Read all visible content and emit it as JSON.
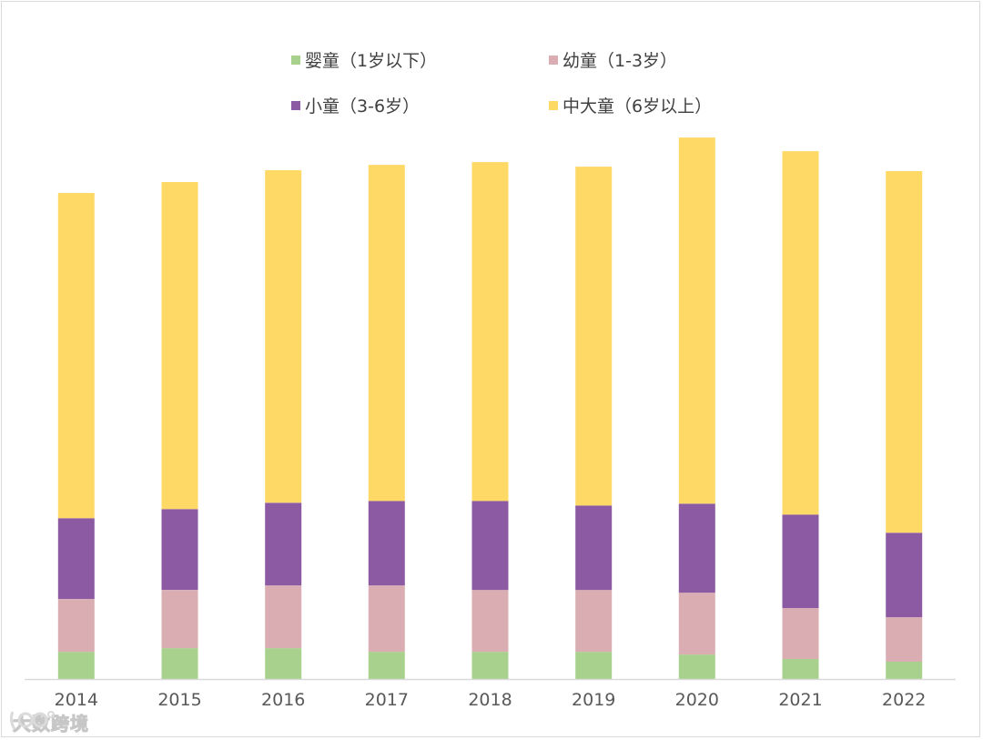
{
  "chart_data": {
    "type": "bar",
    "stacked": true,
    "categories": [
      "2014",
      "2015",
      "2016",
      "2017",
      "2018",
      "2019",
      "2020",
      "2021",
      "2022"
    ],
    "series": [
      {
        "name": "婴童（1岁以下）",
        "color": "#a9d18e",
        "values": [
          30,
          34,
          34,
          30,
          30,
          30,
          27,
          22,
          19
        ]
      },
      {
        "name": "幼童（1-3岁）",
        "color": "#d9adb1",
        "values": [
          58,
          64,
          69,
          73,
          68,
          68,
          68,
          56,
          49
        ]
      },
      {
        "name": "小童（3-6岁）",
        "color": "#8b5aa3",
        "values": [
          89,
          89,
          91,
          93,
          98,
          93,
          98,
          103,
          93
        ]
      },
      {
        "name": "中大童（6岁以上）",
        "color": "#ffd966",
        "values": [
          358,
          360,
          366,
          370,
          373,
          373,
          403,
          400,
          398
        ]
      }
    ],
    "legend_position": "top",
    "grid": false,
    "ylim": [
      0,
      600
    ]
  },
  "watermark": {
    "text": "大数跨境",
    "icon": "dashuju-logo-icon"
  }
}
